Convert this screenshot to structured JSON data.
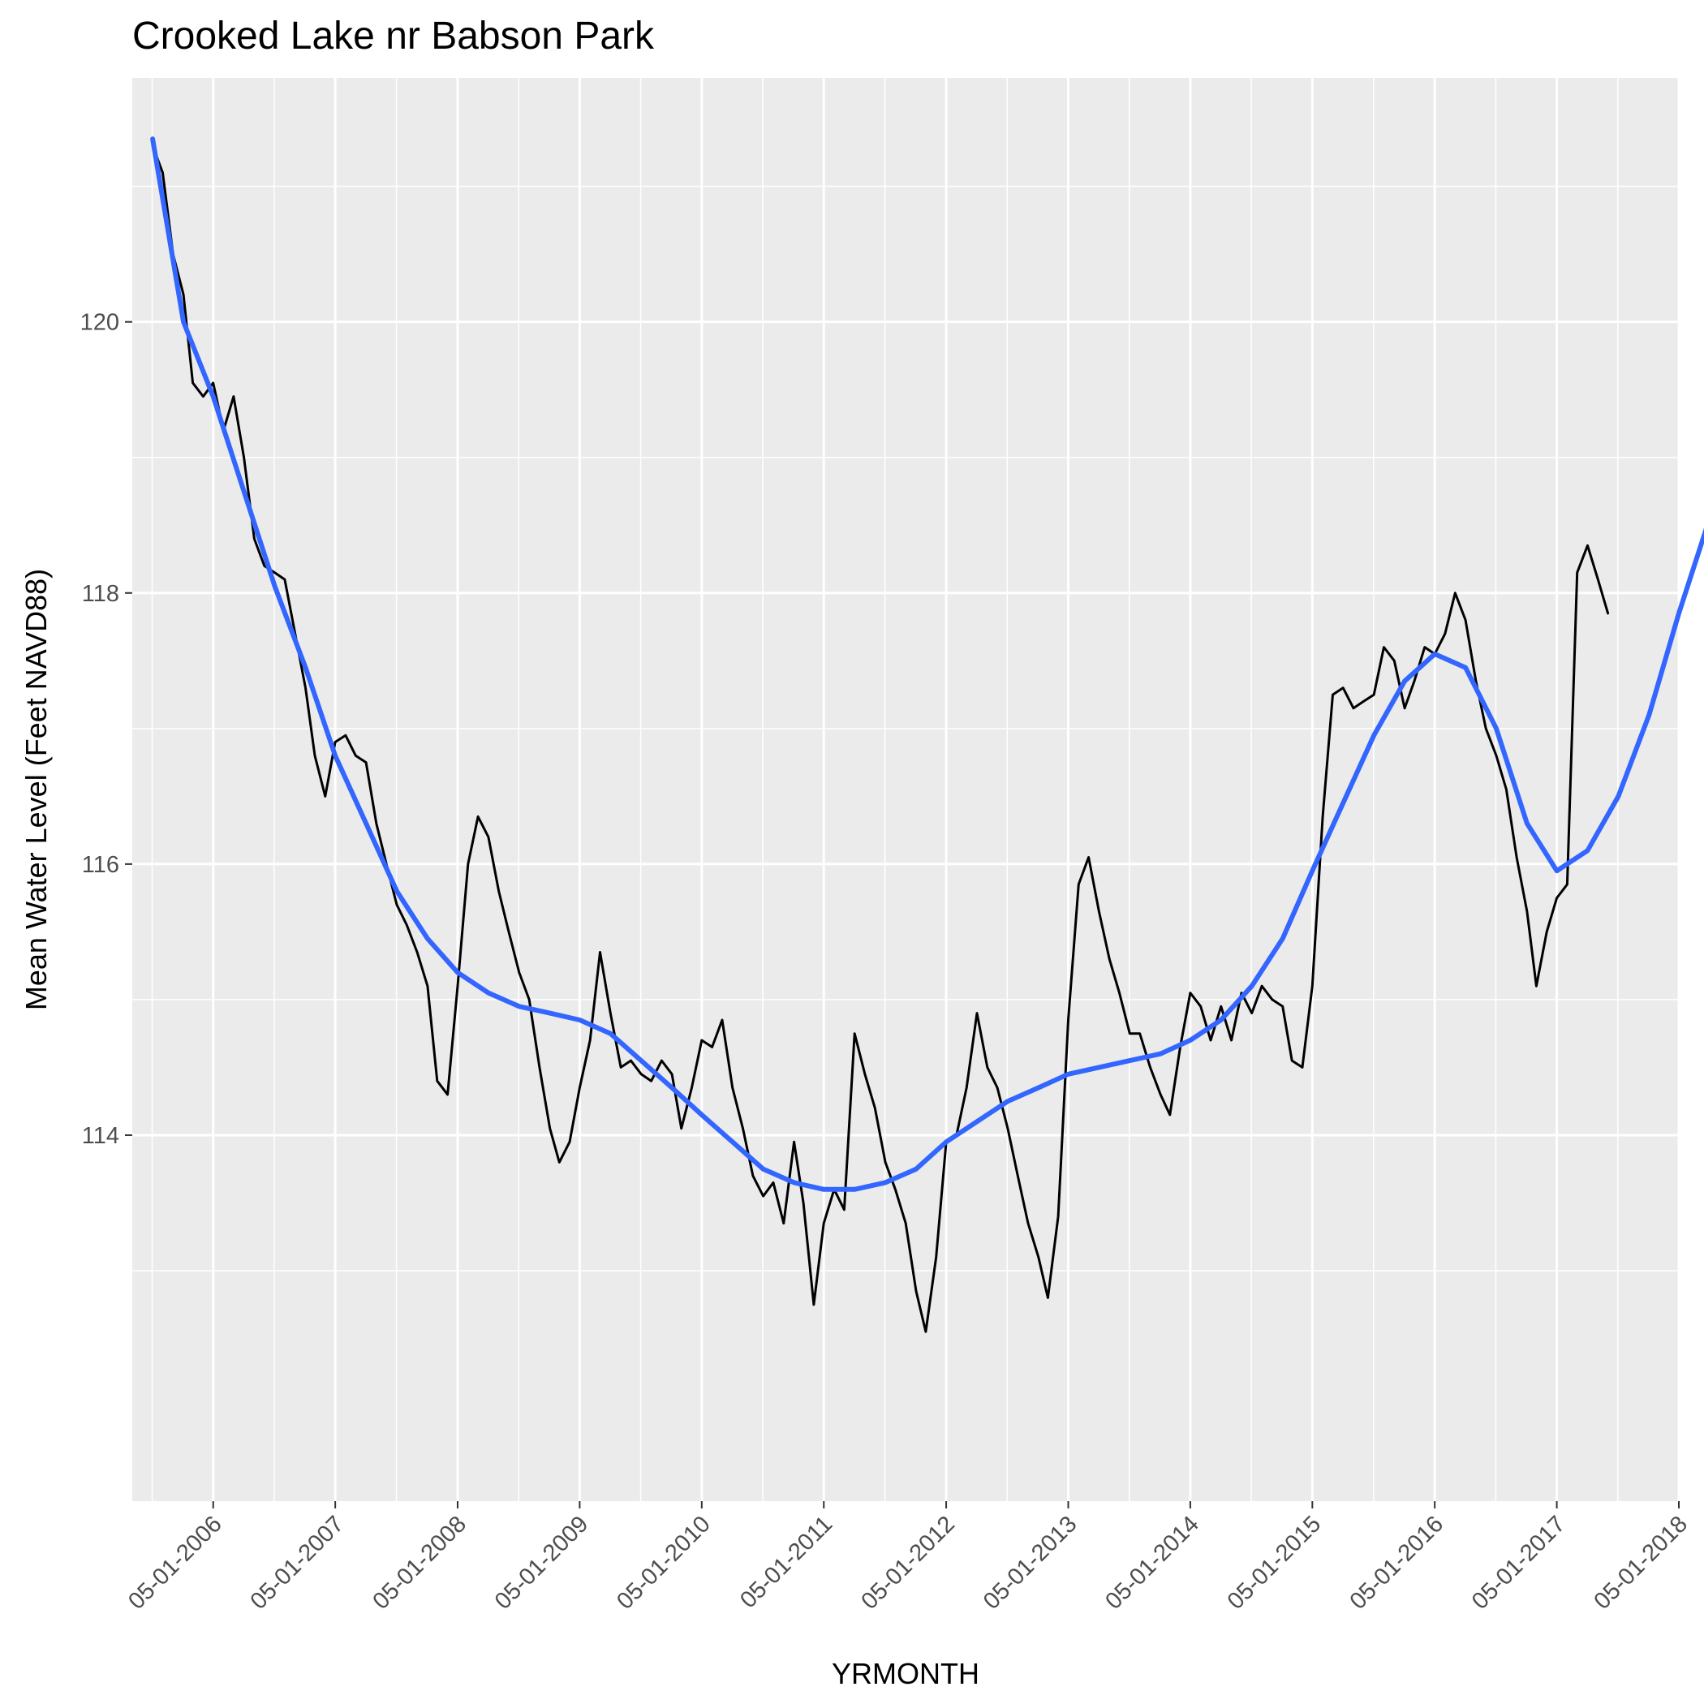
{
  "chart_data": {
    "type": "line",
    "title": "Crooked Lake nr Babson Park",
    "xlabel": "YRMONTH",
    "ylabel": "Mean Water Level (Feet NAVD88)",
    "x_ticks": [
      "05-01-2006",
      "05-01-2007",
      "05-01-2008",
      "05-01-2009",
      "05-01-2010",
      "05-01-2011",
      "05-01-2012",
      "05-01-2013",
      "05-01-2014",
      "05-01-2015",
      "05-01-2016",
      "05-01-2017",
      "05-01-2018"
    ],
    "y_ticks": [
      114,
      116,
      118,
      120
    ],
    "xlim": [
      "2005-09-01",
      "2018-05-01"
    ],
    "ylim": [
      111.3,
      121.8
    ],
    "grid": true,
    "panel_background": "#ebebeb",
    "series": [
      {
        "color": "#000000",
        "style": "thin",
        "points": [
          [
            "2005-11-01",
            121.3
          ],
          [
            "2005-12-01",
            121.1
          ],
          [
            "2006-01-01",
            120.5
          ],
          [
            "2006-02-01",
            120.2
          ],
          [
            "2006-03-01",
            119.55
          ],
          [
            "2006-04-01",
            119.45
          ],
          [
            "2006-05-01",
            119.55
          ],
          [
            "2006-06-01",
            119.2
          ],
          [
            "2006-07-01",
            119.45
          ],
          [
            "2006-08-01",
            119.0
          ],
          [
            "2006-09-01",
            118.4
          ],
          [
            "2006-10-01",
            118.2
          ],
          [
            "2006-11-01",
            118.15
          ],
          [
            "2006-12-01",
            118.1
          ],
          [
            "2007-01-01",
            117.7
          ],
          [
            "2007-02-01",
            117.3
          ],
          [
            "2007-03-01",
            116.8
          ],
          [
            "2007-04-01",
            116.5
          ],
          [
            "2007-05-01",
            116.9
          ],
          [
            "2007-06-01",
            116.95
          ],
          [
            "2007-07-01",
            116.8
          ],
          [
            "2007-08-01",
            116.75
          ],
          [
            "2007-09-01",
            116.3
          ],
          [
            "2007-10-01",
            116.0
          ],
          [
            "2007-11-01",
            115.7
          ],
          [
            "2007-12-01",
            115.55
          ],
          [
            "2008-01-01",
            115.35
          ],
          [
            "2008-02-01",
            115.1
          ],
          [
            "2008-03-01",
            114.4
          ],
          [
            "2008-04-01",
            114.3
          ],
          [
            "2008-05-01",
            115.1
          ],
          [
            "2008-06-01",
            116.0
          ],
          [
            "2008-07-01",
            116.35
          ],
          [
            "2008-08-01",
            116.2
          ],
          [
            "2008-09-01",
            115.8
          ],
          [
            "2008-10-01",
            115.5
          ],
          [
            "2008-11-01",
            115.2
          ],
          [
            "2008-12-01",
            115.0
          ],
          [
            "2009-01-01",
            114.5
          ],
          [
            "2009-02-01",
            114.05
          ],
          [
            "2009-03-01",
            113.8
          ],
          [
            "2009-04-01",
            113.95
          ],
          [
            "2009-05-01",
            114.35
          ],
          [
            "2009-06-01",
            114.7
          ],
          [
            "2009-07-01",
            115.35
          ],
          [
            "2009-08-01",
            114.9
          ],
          [
            "2009-09-01",
            114.5
          ],
          [
            "2009-10-01",
            114.55
          ],
          [
            "2009-11-01",
            114.45
          ],
          [
            "2009-12-01",
            114.4
          ],
          [
            "2010-01-01",
            114.55
          ],
          [
            "2010-02-01",
            114.45
          ],
          [
            "2010-03-01",
            114.05
          ],
          [
            "2010-04-01",
            114.35
          ],
          [
            "2010-05-01",
            114.7
          ],
          [
            "2010-06-01",
            114.65
          ],
          [
            "2010-07-01",
            114.85
          ],
          [
            "2010-08-01",
            114.35
          ],
          [
            "2010-09-01",
            114.05
          ],
          [
            "2010-10-01",
            113.7
          ],
          [
            "2010-11-01",
            113.55
          ],
          [
            "2010-12-01",
            113.65
          ],
          [
            "2011-01-01",
            113.35
          ],
          [
            "2011-02-01",
            113.95
          ],
          [
            "2011-03-01",
            113.5
          ],
          [
            "2011-04-01",
            112.75
          ],
          [
            "2011-05-01",
            113.35
          ],
          [
            "2011-06-01",
            113.6
          ],
          [
            "2011-07-01",
            113.45
          ],
          [
            "2011-08-01",
            114.75
          ],
          [
            "2011-09-01",
            114.45
          ],
          [
            "2011-10-01",
            114.2
          ],
          [
            "2011-11-01",
            113.8
          ],
          [
            "2011-12-01",
            113.6
          ],
          [
            "2012-01-01",
            113.35
          ],
          [
            "2012-02-01",
            112.85
          ],
          [
            "2012-03-01",
            112.55
          ],
          [
            "2012-04-01",
            113.1
          ],
          [
            "2012-05-01",
            113.95
          ],
          [
            "2012-06-01",
            114.0
          ],
          [
            "2012-07-01",
            114.35
          ],
          [
            "2012-08-01",
            114.9
          ],
          [
            "2012-09-01",
            114.5
          ],
          [
            "2012-10-01",
            114.35
          ],
          [
            "2012-11-01",
            114.05
          ],
          [
            "2012-12-01",
            113.7
          ],
          [
            "2013-01-01",
            113.35
          ],
          [
            "2013-02-01",
            113.1
          ],
          [
            "2013-03-01",
            112.8
          ],
          [
            "2013-04-01",
            113.4
          ],
          [
            "2013-05-01",
            114.85
          ],
          [
            "2013-06-01",
            115.85
          ],
          [
            "2013-07-01",
            116.05
          ],
          [
            "2013-08-01",
            115.65
          ],
          [
            "2013-09-01",
            115.3
          ],
          [
            "2013-10-01",
            115.05
          ],
          [
            "2013-11-01",
            114.75
          ],
          [
            "2013-12-01",
            114.75
          ],
          [
            "2014-01-01",
            114.5
          ],
          [
            "2014-02-01",
            114.3
          ],
          [
            "2014-03-01",
            114.15
          ],
          [
            "2014-04-01",
            114.65
          ],
          [
            "2014-05-01",
            115.05
          ],
          [
            "2014-06-01",
            114.95
          ],
          [
            "2014-07-01",
            114.7
          ],
          [
            "2014-08-01",
            114.95
          ],
          [
            "2014-09-01",
            114.7
          ],
          [
            "2014-10-01",
            115.05
          ],
          [
            "2014-11-01",
            114.9
          ],
          [
            "2014-12-01",
            115.1
          ],
          [
            "2015-01-01",
            115.0
          ],
          [
            "2015-02-01",
            114.95
          ],
          [
            "2015-03-01",
            114.55
          ],
          [
            "2015-04-01",
            114.5
          ],
          [
            "2015-05-01",
            115.1
          ],
          [
            "2015-06-01",
            116.35
          ],
          [
            "2015-07-01",
            117.25
          ],
          [
            "2015-08-01",
            117.3
          ],
          [
            "2015-09-01",
            117.15
          ],
          [
            "2015-10-01",
            117.2
          ],
          [
            "2015-11-01",
            117.25
          ],
          [
            "2015-12-01",
            117.6
          ],
          [
            "2016-01-01",
            117.5
          ],
          [
            "2016-02-01",
            117.15
          ],
          [
            "2016-03-01",
            117.35
          ],
          [
            "2016-04-01",
            117.6
          ],
          [
            "2016-05-01",
            117.55
          ],
          [
            "2016-06-01",
            117.7
          ],
          [
            "2016-07-01",
            118.0
          ],
          [
            "2016-08-01",
            117.8
          ],
          [
            "2016-09-01",
            117.35
          ],
          [
            "2016-10-01",
            117.0
          ],
          [
            "2016-11-01",
            116.8
          ],
          [
            "2016-12-01",
            116.55
          ],
          [
            "2017-01-01",
            116.05
          ],
          [
            "2017-02-01",
            115.65
          ],
          [
            "2017-03-01",
            115.1
          ],
          [
            "2017-04-01",
            115.5
          ],
          [
            "2017-05-01",
            115.75
          ],
          [
            "2017-06-01",
            115.85
          ],
          [
            "2017-07-01",
            118.15
          ],
          [
            "2017-08-01",
            118.35
          ],
          [
            "2017-09-01",
            118.1
          ],
          [
            "2017-10-01",
            117.85
          ]
        ]
      },
      {
        "color": "#3366ff",
        "style": "smooth",
        "points": [
          [
            "2005-11-01",
            121.35
          ],
          [
            "2006-02-01",
            120.0
          ],
          [
            "2006-05-01",
            119.45
          ],
          [
            "2006-08-01",
            118.75
          ],
          [
            "2006-11-01",
            118.05
          ],
          [
            "2007-02-01",
            117.45
          ],
          [
            "2007-05-01",
            116.8
          ],
          [
            "2007-08-01",
            116.3
          ],
          [
            "2007-11-01",
            115.8
          ],
          [
            "2008-02-01",
            115.45
          ],
          [
            "2008-05-01",
            115.2
          ],
          [
            "2008-08-01",
            115.05
          ],
          [
            "2008-11-01",
            114.95
          ],
          [
            "2009-02-01",
            114.9
          ],
          [
            "2009-05-01",
            114.85
          ],
          [
            "2009-08-01",
            114.75
          ],
          [
            "2009-11-01",
            114.55
          ],
          [
            "2010-02-01",
            114.35
          ],
          [
            "2010-05-01",
            114.15
          ],
          [
            "2010-08-01",
            113.95
          ],
          [
            "2010-11-01",
            113.75
          ],
          [
            "2011-02-01",
            113.65
          ],
          [
            "2011-05-01",
            113.6
          ],
          [
            "2011-08-01",
            113.6
          ],
          [
            "2011-11-01",
            113.65
          ],
          [
            "2012-02-01",
            113.75
          ],
          [
            "2012-05-01",
            113.95
          ],
          [
            "2012-08-01",
            114.1
          ],
          [
            "2012-11-01",
            114.25
          ],
          [
            "2013-02-01",
            114.35
          ],
          [
            "2013-05-01",
            114.45
          ],
          [
            "2013-08-01",
            114.5
          ],
          [
            "2013-11-01",
            114.55
          ],
          [
            "2014-02-01",
            114.6
          ],
          [
            "2014-05-01",
            114.7
          ],
          [
            "2014-08-01",
            114.85
          ],
          [
            "2014-11-01",
            115.1
          ],
          [
            "2015-02-01",
            115.45
          ],
          [
            "2015-05-01",
            115.95
          ],
          [
            "2015-08-01",
            116.45
          ],
          [
            "2015-11-01",
            116.95
          ],
          [
            "2016-02-01",
            117.35
          ],
          [
            "2016-05-01",
            117.55
          ],
          [
            "2016-08-01",
            117.45
          ],
          [
            "2016-11-01",
            117.0
          ],
          [
            "2017-02-01",
            116.3
          ],
          [
            "2017-05-01",
            115.95
          ],
          [
            "2017-08-01",
            116.1
          ],
          [
            "2017-11-01",
            116.5
          ],
          [
            "2018-02-01",
            117.1
          ],
          [
            "2018-05-01",
            117.85
          ],
          [
            "2018-08-01",
            118.55
          ]
        ]
      }
    ]
  }
}
